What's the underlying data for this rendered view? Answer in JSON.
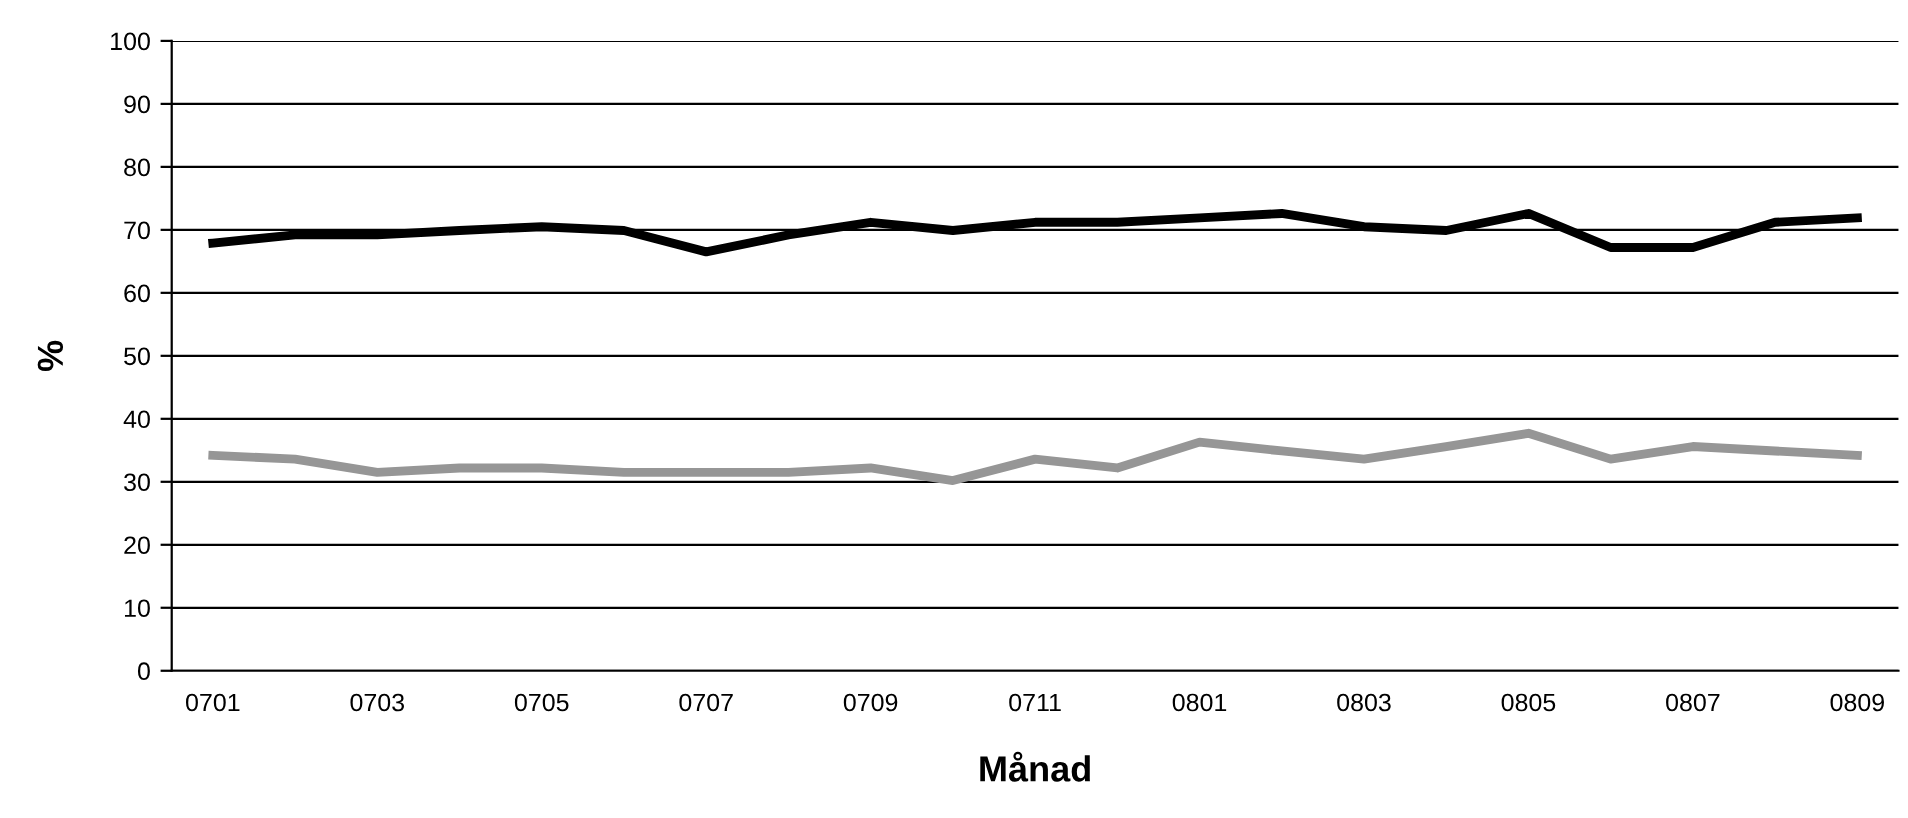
{
  "chart_data": {
    "type": "line",
    "xlabel": "Månad",
    "ylabel": "%",
    "categories": [
      "0701",
      null,
      "0703",
      null,
      "0705",
      null,
      "0707",
      null,
      "0709",
      null,
      "0711",
      null,
      "0801",
      null,
      "0803",
      null,
      "0805",
      null,
      "0807",
      null,
      "0809"
    ],
    "series": [
      {
        "color": "#000000",
        "values": [
          67.9,
          69.2,
          69.2,
          69.9,
          70.5,
          69.9,
          66.5,
          69.2,
          71.2,
          69.9,
          71.2,
          71.2,
          71.9,
          72.6,
          70.5,
          69.9,
          72.6,
          67.2,
          67.2,
          71.2,
          71.9
        ]
      },
      {
        "color": "#969696",
        "values": [
          34.2,
          33.6,
          31.5,
          32.2,
          32.2,
          31.5,
          31.5,
          31.5,
          32.2,
          30.2,
          33.6,
          32.2,
          36.3,
          34.9,
          33.6,
          35.6,
          37.7,
          33.6,
          35.6,
          34.9,
          34.2
        ]
      }
    ],
    "ylim": [
      0,
      100
    ],
    "yticks": [
      0,
      10,
      20,
      30,
      40,
      50,
      60,
      70,
      80,
      90,
      100
    ],
    "grid": "y",
    "legend": false,
    "marker": "none",
    "line_style": "solid"
  }
}
